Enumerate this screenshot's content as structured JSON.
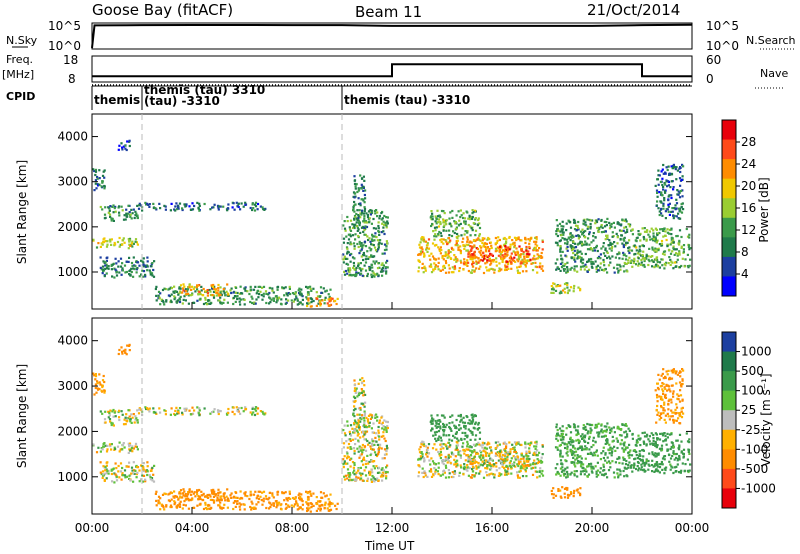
{
  "header": {
    "station": "Goose Bay (fitACF)",
    "beam": "Beam 11",
    "date": "21/Oct/2014"
  },
  "strip_labels": {
    "nsky": "N.Sky",
    "nsearch": "N.Search",
    "freq": "Freq.",
    "freq_unit": "[MHz]",
    "nave": "Nave",
    "cpid": "CPID",
    "nsky_ticks": [
      "10^5",
      "10^0"
    ],
    "nsearch_ticks": [
      "10^5",
      "10^0"
    ],
    "freq_ticks": [
      "18",
      "8"
    ],
    "nave_ticks": [
      "60",
      "0"
    ]
  },
  "cpid_segments": [
    {
      "start": 0.0,
      "end": 2.0,
      "label": "themis",
      "label2": ""
    },
    {
      "start": 2.0,
      "end": 10.0,
      "label": "themis (tau) 3310",
      "label2": "(tau) -3310"
    },
    {
      "start": 10.0,
      "end": 24.0,
      "label": "themis (tau) -3310",
      "label2": ""
    }
  ],
  "axis": {
    "ylabel": "Slant Range [km]",
    "xlabel": "Time UT",
    "xticks": [
      "00:00",
      "04:00",
      "08:00",
      "12:00",
      "16:00",
      "20:00",
      "00:00"
    ],
    "yticks": [
      "1000",
      "2000",
      "3000",
      "4000"
    ]
  },
  "colorbars": {
    "power": {
      "label": "Power [dB]",
      "ticks": [
        "28",
        "24",
        "20",
        "16",
        "12",
        "8",
        "4"
      ],
      "colors": [
        "#e8000b",
        "#ff4a1a",
        "#ff8c00",
        "#f0c800",
        "#9acd32",
        "#3a9a4a",
        "#1f7a4a",
        "#1c3fa0",
        "#0000ff"
      ]
    },
    "velocity": {
      "label": "Velocity [m s⁻¹]",
      "ticks": [
        "1000",
        "500",
        "100",
        "25",
        "-25",
        "-100",
        "-500",
        "-1000"
      ],
      "colors": [
        "#1c3fa0",
        "#1f7a4a",
        "#3a9a4a",
        "#5ec03a",
        "#bdbdbd",
        "#ffb000",
        "#ff8c00",
        "#ff4a1a",
        "#e8000b"
      ]
    }
  },
  "chart_data": [
    {
      "type": "line",
      "title": "N.Sky / N.Search",
      "x": [
        0,
        0.1,
        2,
        4,
        6,
        8,
        10,
        12,
        14,
        16,
        18,
        20,
        22,
        24
      ],
      "series": [
        {
          "name": "N.Sky",
          "values": [
            1,
            50000,
            60000,
            62000,
            61000,
            60000,
            60000,
            40000,
            40000,
            40000,
            40000,
            40000,
            60000,
            70000
          ]
        }
      ],
      "ylim_log10": [
        0,
        5
      ]
    },
    {
      "type": "line",
      "title": "Freq. / Nave",
      "x": [
        0,
        12,
        12,
        22,
        22,
        24
      ],
      "series": [
        {
          "name": "Freq.",
          "values": [
            10,
            10,
            15,
            15,
            10,
            10
          ]
        },
        {
          "name": "Nave",
          "values": [
            8,
            8,
            8,
            8,
            8,
            8
          ]
        }
      ],
      "ylim": [
        8,
        18
      ]
    },
    {
      "type": "heatmap",
      "title": "Power",
      "xlabel": "Time UT",
      "ylabel": "Slant Range [km]",
      "xlim": [
        0,
        24
      ],
      "ylim": [
        180,
        4500
      ],
      "zlabel": "Power [dB]",
      "zlim": [
        0,
        30
      ],
      "blobs": [
        {
          "t": [
            0.0,
            1.8
          ],
          "r": [
            1550,
            1800
          ],
          "z": 16
        },
        {
          "t": [
            0.3,
            1.8
          ],
          "r": [
            2150,
            2500
          ],
          "z": 9
        },
        {
          "t": [
            1.8,
            6.9
          ],
          "r": [
            2380,
            2560
          ],
          "z": 6
        },
        {
          "t": [
            0.0,
            0.5
          ],
          "r": [
            2800,
            3300
          ],
          "z": 6
        },
        {
          "t": [
            1.0,
            1.5
          ],
          "r": [
            3700,
            3950
          ],
          "z": 6
        },
        {
          "t": [
            0.3,
            2.5
          ],
          "r": [
            900,
            1350
          ],
          "z": 8
        },
        {
          "t": [
            2.5,
            9.5
          ],
          "r": [
            300,
            700
          ],
          "z": 10
        },
        {
          "t": [
            3.5,
            5.5
          ],
          "r": [
            500,
            750
          ],
          "z": 20
        },
        {
          "t": [
            8.5,
            9.8
          ],
          "r": [
            250,
            450
          ],
          "z": 22
        },
        {
          "t": [
            10.0,
            11.8
          ],
          "r": [
            900,
            2400
          ],
          "z": 10
        },
        {
          "t": [
            10.4,
            10.9
          ],
          "r": [
            2000,
            3200
          ],
          "z": 8
        },
        {
          "t": [
            13.0,
            18.0
          ],
          "r": [
            1000,
            1800
          ],
          "z": 20
        },
        {
          "t": [
            13.5,
            15.5
          ],
          "r": [
            1800,
            2400
          ],
          "z": 12
        },
        {
          "t": [
            15.0,
            17.5
          ],
          "r": [
            1200,
            1600
          ],
          "z": 25
        },
        {
          "t": [
            18.3,
            19.5
          ],
          "r": [
            550,
            800
          ],
          "z": 16
        },
        {
          "t": [
            18.5,
            21.5
          ],
          "r": [
            1000,
            2200
          ],
          "z": 10
        },
        {
          "t": [
            21.5,
            23.9
          ],
          "r": [
            1100,
            2000
          ],
          "z": 12
        },
        {
          "t": [
            22.5,
            23.6
          ],
          "r": [
            2200,
            3400
          ],
          "z": 6
        }
      ]
    },
    {
      "type": "heatmap",
      "title": "Velocity",
      "xlabel": "Time UT",
      "ylabel": "Slant Range [km]",
      "xlim": [
        0,
        24
      ],
      "ylim": [
        180,
        4500
      ],
      "zlabel": "Velocity [m s⁻¹]",
      "zlim": [
        -1000,
        1000
      ],
      "blobs": [
        {
          "t": [
            0.0,
            1.8
          ],
          "r": [
            1550,
            1800
          ],
          "z": 0
        },
        {
          "t": [
            0.3,
            1.8
          ],
          "r": [
            2150,
            2500
          ],
          "z": 0
        },
        {
          "t": [
            1.8,
            6.9
          ],
          "r": [
            2380,
            2560
          ],
          "z": 0
        },
        {
          "t": [
            0.0,
            0.5
          ],
          "r": [
            2800,
            3300
          ],
          "z": -150
        },
        {
          "t": [
            1.0,
            1.5
          ],
          "r": [
            3700,
            3950
          ],
          "z": -200
        },
        {
          "t": [
            0.3,
            2.5
          ],
          "r": [
            900,
            1350
          ],
          "z": 0
        },
        {
          "t": [
            2.5,
            9.5
          ],
          "r": [
            300,
            700
          ],
          "z": -150
        },
        {
          "t": [
            3.5,
            5.5
          ],
          "r": [
            500,
            750
          ],
          "z": -300
        },
        {
          "t": [
            8.5,
            9.8
          ],
          "r": [
            250,
            450
          ],
          "z": -200
        },
        {
          "t": [
            10.0,
            11.8
          ],
          "r": [
            900,
            2400
          ],
          "z": 0
        },
        {
          "t": [
            10.4,
            10.9
          ],
          "r": [
            2000,
            3200
          ],
          "z": 0
        },
        {
          "t": [
            13.0,
            18.0
          ],
          "r": [
            1000,
            1800
          ],
          "z": 0
        },
        {
          "t": [
            13.5,
            15.5
          ],
          "r": [
            1800,
            2400
          ],
          "z": 300
        },
        {
          "t": [
            15.0,
            17.5
          ],
          "r": [
            1200,
            1600
          ],
          "z": 0
        },
        {
          "t": [
            18.3,
            19.5
          ],
          "r": [
            550,
            800
          ],
          "z": -200
        },
        {
          "t": [
            18.5,
            21.5
          ],
          "r": [
            1000,
            2200
          ],
          "z": 150
        },
        {
          "t": [
            21.5,
            23.9
          ],
          "r": [
            1100,
            2000
          ],
          "z": 200
        },
        {
          "t": [
            22.5,
            23.6
          ],
          "r": [
            2200,
            3400
          ],
          "z": -150
        }
      ]
    }
  ]
}
